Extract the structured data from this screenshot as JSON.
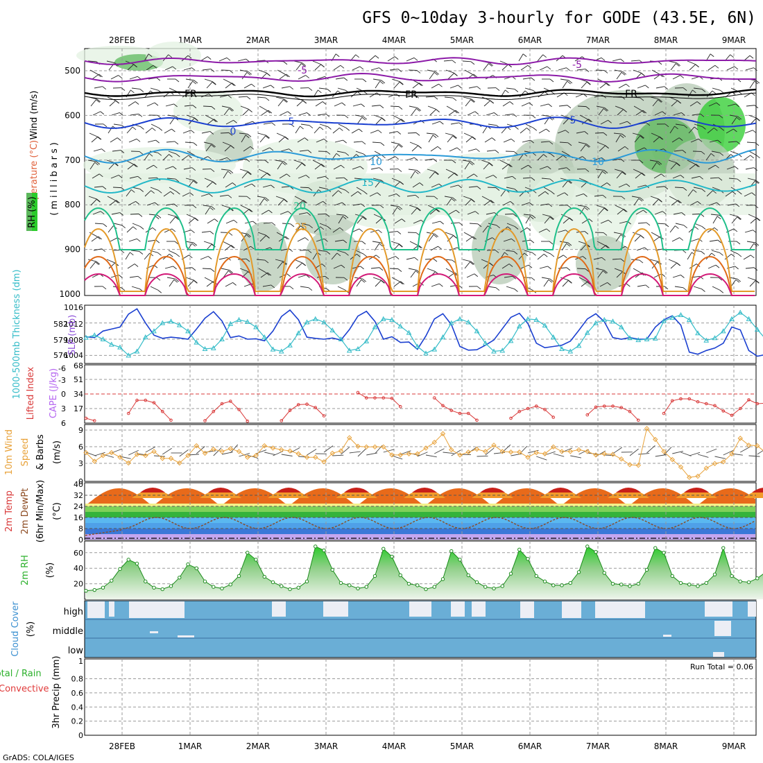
{
  "title": "GFS 0~10day 3-hourly for GODE (43.5E, 6N)",
  "footer": "GrADS: COLA/IGES",
  "dates": [
    "28FEB",
    "1MAR",
    "2MAR",
    "3MAR",
    "4MAR",
    "5MAR",
    "6MAR",
    "7MAR",
    "8MAR",
    "9MAR"
  ],
  "colors": {
    "rh_light": "#e3f1e1",
    "rh_mid": "#b5c9b4",
    "rh_dark": "#5cb85c",
    "rh_bright": "#2bcc2b",
    "purple": "#8c1aa8",
    "dark_blue": "#1a3fd0",
    "sky_blue": "#2a9ad8",
    "cyan": "#22b8c8",
    "teal": "#1fbf8a",
    "orange_line": "#e39a2a",
    "dark_orange": "#e06a18",
    "magenta": "#d21a78",
    "thickness_blue": "#1a3fd0",
    "slp_cyan": "#35bcc8",
    "lifted_red": "#d93a3a",
    "cape_purple": "#b566f0",
    "wind_orange": "#e8a23a",
    "cloud_blue": "#6aaed6",
    "cloud_gap": "#eceef5",
    "precip_green": "#2bb02b",
    "precip_red": "#e03a3a"
  },
  "panels": {
    "upper_air": {
      "ylabel_rh": "RH (%)",
      "ylabel_temp": "Temperature (°C)",
      "ylabel_wind": "Wind (m/s)",
      "ylabel_units": "(millibars)",
      "pressure_ticks": [
        "500",
        "600",
        "700",
        "800",
        "900",
        "1000"
      ],
      "contour_labels": [
        "-5",
        "-5",
        "FR",
        "FR",
        "FR",
        "0",
        "5",
        "5",
        "10",
        "10",
        "15",
        "20",
        "25"
      ]
    },
    "thickness_slp": {
      "ylabel_thickness": "1000-500mb Thickness (dm)",
      "ylabel_slp": "SLP (mb)",
      "left_ticks": [
        "582",
        "579",
        "576"
      ],
      "right_ticks": [
        "1016",
        "1012",
        "1008",
        "1004"
      ]
    },
    "stability": {
      "ylabel_li": "Lifted Index",
      "ylabel_cape": "CAPE (J/kg)",
      "left_ticks": [
        "-6",
        "-3",
        "0",
        "3",
        "6"
      ],
      "right_ticks": [
        "68",
        "51",
        "34",
        "17"
      ]
    },
    "wind10m": {
      "ylabel_a": "10m Wind",
      "ylabel_b": "Speed",
      "ylabel_c": "& Barbs",
      "ylabel_units": "(m/s)",
      "ticks": [
        "9",
        "6",
        "3",
        "0"
      ]
    },
    "temp2m": {
      "ylabel_a": "2m Temp",
      "ylabel_b": "2m DewPt",
      "ylabel_c": "(6hr Min/Max)",
      "ylabel_units": "(°C)",
      "ticks": [
        "40",
        "32",
        "24",
        "16",
        "8",
        "0"
      ]
    },
    "rh2m": {
      "ylabel": "2m RH",
      "ylabel_units": "(%)",
      "ticks": [
        "60",
        "40",
        "20"
      ]
    },
    "cloud": {
      "ylabel": "Cloud Cover",
      "ylabel_units": "(%)",
      "levels": [
        "high",
        "middle",
        "low"
      ]
    },
    "precip": {
      "ylabel_a": "Total / Rain",
      "ylabel_b": "Convective",
      "ylabel_units": "3hr Precip (mm)",
      "ticks": [
        "0.8",
        "0.6",
        "0.4",
        "0.2",
        "0"
      ],
      "top_tick": "1",
      "run_total": "Run Total = 0.06"
    }
  },
  "chart_data": [
    {
      "type": "line",
      "name": "thickness_slp",
      "x_step_hours": 3,
      "series": [
        {
          "name": "SLP (mb)",
          "axis": "right",
          "values": [
            1008.6,
            1008.4,
            1010.0,
            1010.5,
            1011.0,
            1014.2,
            1015.5,
            1012.0,
            1009.0,
            1008.2,
            1008.5,
            1008.3,
            1008.0,
            1010.5,
            1013.2,
            1014.8,
            1012.5,
            1008.4,
            1008.8,
            1008.0,
            1008.1,
            1007.6,
            1010.0,
            1013.6,
            1015.2,
            1012.8,
            1008.5,
            1008.2,
            1008.0,
            1008.3,
            1007.8,
            1010.4,
            1013.7,
            1014.9,
            1012.4,
            1008.0,
            1008.6,
            1007.2,
            1007.3,
            1005.5,
            1008.8,
            1013.0,
            1014.3,
            1011.6,
            1006.2,
            1005.3,
            1005.4,
            1006.5,
            1007.8,
            1010.6,
            1013.4,
            1014.4,
            1011.9,
            1007.0,
            1005.9,
            1006.2,
            1006.5,
            1007.5,
            1010.2,
            1013.0,
            1014.3,
            1012.3,
            1008.4,
            1008.0,
            1008.4,
            1008.0,
            1008.0,
            1011.0,
            1012.8,
            1013.8,
            1011.5,
            1004.8,
            1004.3,
            1005.2,
            1005.8,
            1007.0,
            1011.0,
            1010.3,
            1005.2,
            1003.8,
            1004.2,
            1006.5,
            1007.9,
            1009.0,
            1010.2,
            1011.0
          ]
        },
        {
          "name": "Thickness (dm)",
          "axis": "left",
          "values": [
            1008.4,
            1009.0,
            1008.0,
            1006.7,
            1006.0,
            1004.0,
            1005.0,
            1008.5,
            1010.0,
            1012.0,
            1012.4,
            1011.5,
            1010.0,
            1007.2,
            1005.6,
            1005.8,
            1008.0,
            1011.8,
            1012.8,
            1012.3,
            1011.0,
            1008.5,
            1005.5,
            1005.0,
            1006.5,
            1009.5,
            1012.2,
            1013.0,
            1012.2,
            1010.2,
            1008.0,
            1005.2,
            1005.6,
            1007.5,
            1011.0,
            1013.0,
            1012.8,
            1011.2,
            1009.6,
            1006.2,
            1004.5,
            1005.5,
            1008.5,
            1012.0,
            1013.0,
            1012.2,
            1010.0,
            1007.0,
            1005.0,
            1005.2,
            1007.6,
            1011.2,
            1013.0,
            1012.8,
            1011.4,
            1008.5,
            1005.6,
            1005.0,
            1006.4,
            1009.6,
            1012.0,
            1012.8,
            1012.4,
            1011.0,
            1008.3,
            1007.8,
            1008.0,
            1008.2,
            1012.5,
            1013.3,
            1014.0,
            1012.8,
            1009.5,
            1007.7,
            1008.3,
            1010.0,
            1013.0,
            1014.6,
            1013.0,
            1010.4,
            1008.0,
            1008.3,
            1008.0,
            1009.0,
            1008.0,
            1008.2
          ]
        }
      ],
      "ylim_right": [
        1002,
        1016
      ]
    },
    {
      "type": "line",
      "name": "lifted_index",
      "x_step_hours": 3,
      "series": [
        {
          "name": "Lifted Index",
          "values": [
            5,
            5.5,
            null,
            null,
            null,
            4,
            1.3,
            1.3,
            1.8,
            3.6,
            5.4,
            null,
            null,
            null,
            5.5,
            3.6,
            2,
            1.5,
            3.2,
            5.6,
            null,
            null,
            null,
            5.5,
            3.4,
            2.2,
            2.1,
            2.8,
            4.5,
            null,
            null,
            null,
            -0.3,
            0.8,
            0.8,
            0.8,
            0.9,
            2.6,
            null,
            null,
            null,
            0.8,
            2.4,
            3.4,
            4,
            4,
            5.4,
            null,
            null,
            null,
            5,
            3.6,
            3,
            2.5,
            3.2,
            4.8,
            null,
            null,
            null,
            4.3,
            2.7,
            2.5,
            2.5,
            2.8,
            3.6,
            5.4,
            null,
            null,
            4,
            1.4,
            1,
            1,
            1.6,
            2,
            2.4,
            3.5,
            4.4,
            3,
            1.2,
            2,
            1.9,
            2,
            3,
            4,
            2.5,
            3,
            4
          ]
        }
      ],
      "ylim": [
        6,
        -6
      ]
    },
    {
      "type": "bar",
      "name": "cape",
      "bars": [
        {
          "x_hours": 234,
          "value": 14
        },
        {
          "x_hours": 237,
          "value": 3
        },
        {
          "x_hours": 249,
          "value": 26
        },
        {
          "x_hours": 252,
          "value": 43
        },
        {
          "x_hours": 255,
          "value": 63
        },
        {
          "x_hours": 258,
          "value": 44
        }
      ],
      "ylim": [
        0,
        68
      ]
    },
    {
      "type": "line",
      "name": "wind10m_speed",
      "x_step_hours": 3,
      "series": [
        {
          "name": "10m Wind Speed (m/s)",
          "values": [
            5,
            3.5,
            4.5,
            5,
            4.2,
            3.2,
            4.7,
            4.5,
            5.2,
            4,
            4,
            3.2,
            4.5,
            6.2,
            4.9,
            5.6,
            5.2,
            5.7,
            5.2,
            4.2,
            4.5,
            6.2,
            5.8,
            5.5,
            5.3,
            4.8,
            4.2,
            4.2,
            3.4,
            4.9,
            5.3,
            7.6,
            6.1,
            6,
            6,
            6,
            4.6,
            4.6,
            4.8,
            4.8,
            5.8,
            6.8,
            8.3,
            5.5,
            4.6,
            5.1,
            5.6,
            5.2,
            6.3,
            5.2,
            5.1,
            5.1,
            4.2,
            5,
            4.8,
            6,
            5.2,
            5.2,
            5.5,
            5.2,
            4.6,
            4.8,
            4.7,
            3.9,
            2.9,
            2.8,
            9.2,
            7.3,
            5.2,
            3.8,
            2.5,
            0.7,
            0.9,
            2.3,
            3.1,
            3.4,
            4.8,
            7.5,
            6.3,
            6.2,
            5,
            2.8,
            2.8,
            3.3,
            5.6,
            7.3,
            5.8
          ]
        }
      ],
      "ylim": [
        0,
        10
      ]
    },
    {
      "type": "area",
      "name": "temp2m",
      "series": [
        {
          "name": "2m Temp (°C)",
          "daily_max": 36,
          "daily_min": 24
        },
        {
          "name": "2m DewPt (°C)",
          "range": [
            2,
            18
          ]
        }
      ],
      "ylim": [
        0,
        40
      ]
    },
    {
      "type": "area",
      "name": "rh2m",
      "x_step_hours": 3,
      "series": [
        {
          "name": "2m RH (%)",
          "values": [
            11,
            12,
            15,
            24,
            39,
            51,
            46,
            23,
            15,
            13,
            17,
            28,
            45,
            40,
            23,
            16,
            14,
            19,
            30,
            60,
            51,
            29,
            22,
            17,
            13,
            15,
            23,
            68,
            63,
            38,
            21,
            18,
            14,
            16,
            30,
            65,
            55,
            31,
            20,
            18,
            13,
            16,
            26,
            62,
            51,
            31,
            22,
            16,
            14,
            17,
            33,
            64,
            52,
            30,
            23,
            18,
            18,
            21,
            35,
            68,
            61,
            34,
            20,
            19,
            17,
            20,
            38,
            66,
            60,
            30,
            21,
            19,
            17,
            21,
            32,
            66,
            30,
            23,
            22,
            27,
            35,
            50,
            58,
            60,
            48,
            31,
            25
          ]
        }
      ],
      "ylim": [
        0,
        70
      ]
    },
    {
      "type": "bar",
      "name": "cloud_cover",
      "levels": [
        "high",
        "middle",
        "low"
      ],
      "note": "Nearly continuous low/middle/high cover; scattered gaps near the top of the high layer"
    },
    {
      "type": "bar",
      "name": "precip_3hr",
      "bars": [
        {
          "x_hours": 255,
          "total": 0.06,
          "convective": 0.04
        }
      ],
      "ylim": [
        0,
        1
      ],
      "run_total": 0.06
    }
  ]
}
